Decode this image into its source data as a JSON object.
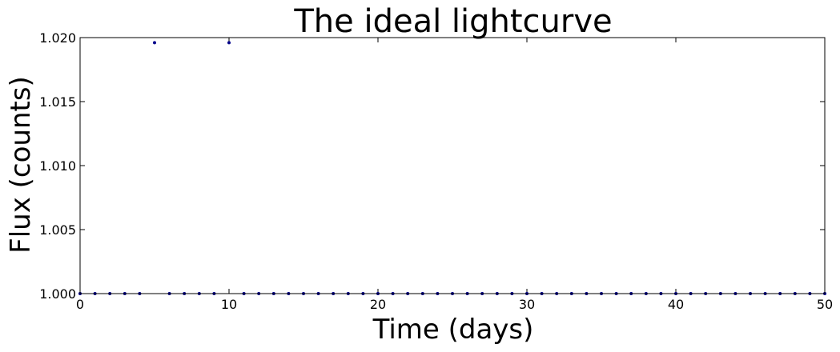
{
  "chart_data": {
    "type": "scatter",
    "title": "The ideal lightcurve",
    "xlabel": "Time (days)",
    "ylabel": "Flux (counts)",
    "xlim": [
      0,
      50
    ],
    "ylim": [
      1.0,
      1.02
    ],
    "xticks": [
      0,
      10,
      20,
      30,
      40,
      50
    ],
    "xtick_labels": [
      "0",
      "10",
      "20",
      "30",
      "40",
      "50"
    ],
    "yticks": [
      1.0,
      1.005,
      1.01,
      1.015,
      1.02
    ],
    "ytick_labels": [
      "1.000",
      "1.005",
      "1.010",
      "1.015",
      "1.020"
    ],
    "grid": false,
    "legend": "none",
    "series": [
      {
        "color": "#00008b",
        "marker": "point",
        "x": [
          0,
          1,
          2,
          3,
          4,
          5,
          6,
          7,
          8,
          9,
          10,
          11,
          12,
          13,
          14,
          15,
          16,
          17,
          18,
          19,
          20,
          21,
          22,
          23,
          24,
          25,
          26,
          27,
          28,
          29,
          30,
          31,
          32,
          33,
          34,
          35,
          36,
          37,
          38,
          39,
          40,
          41,
          42,
          43,
          44,
          45,
          46,
          47,
          48,
          49,
          50
        ],
        "y": [
          1.0,
          1.0,
          1.0,
          1.0,
          1.0,
          1.0196,
          1.0,
          1.0,
          1.0,
          1.0,
          1.0196,
          1.0,
          1.0,
          1.0,
          1.0,
          1.0,
          1.0,
          1.0,
          1.0,
          1.0,
          1.0,
          1.0,
          1.0,
          1.0,
          1.0,
          1.0,
          1.0,
          1.0,
          1.0,
          1.0,
          1.0,
          1.0,
          1.0,
          1.0,
          1.0,
          1.0,
          1.0,
          1.0,
          1.0,
          1.0,
          1.0,
          1.0,
          1.0,
          1.0,
          1.0,
          1.0,
          1.0,
          1.0,
          1.0,
          1.0,
          1.0
        ]
      }
    ]
  }
}
